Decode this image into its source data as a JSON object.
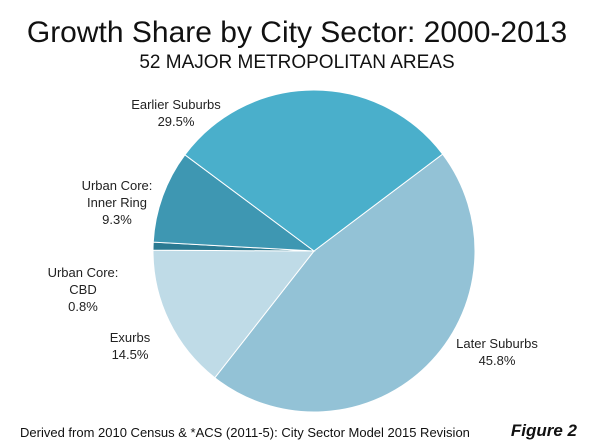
{
  "chart_data": {
    "type": "pie",
    "title": "Growth Share by City Sector: 2000-2013",
    "subtitle": "52 MAJOR METROPOLITAN AREAS",
    "slices": [
      {
        "label_lines": [
          "Later Suburbs"
        ],
        "value_label": "45.8%",
        "value": 45.8,
        "color": "#93c2d6"
      },
      {
        "label_lines": [
          "Exurbs"
        ],
        "value_label": "14.5%",
        "value": 14.5,
        "color": "#bfdbe7"
      },
      {
        "label_lines": [
          "Urban Core:",
          "CBD"
        ],
        "value_label": "0.8%",
        "value": 0.8,
        "color": "#2b7a92"
      },
      {
        "label_lines": [
          "Urban Core:",
          "Inner Ring"
        ],
        "value_label": "9.3%",
        "value": 9.3,
        "color": "#3e97b2"
      },
      {
        "label_lines": [
          "Earlier Suburbs"
        ],
        "value_label": "29.5%",
        "value": 29.5,
        "color": "#4aafcb"
      }
    ],
    "footnote": "Derived from 2010 Census & *ACS (2011-5): City Sector Model 2015 Revision",
    "figure_label": "Figure 2"
  }
}
